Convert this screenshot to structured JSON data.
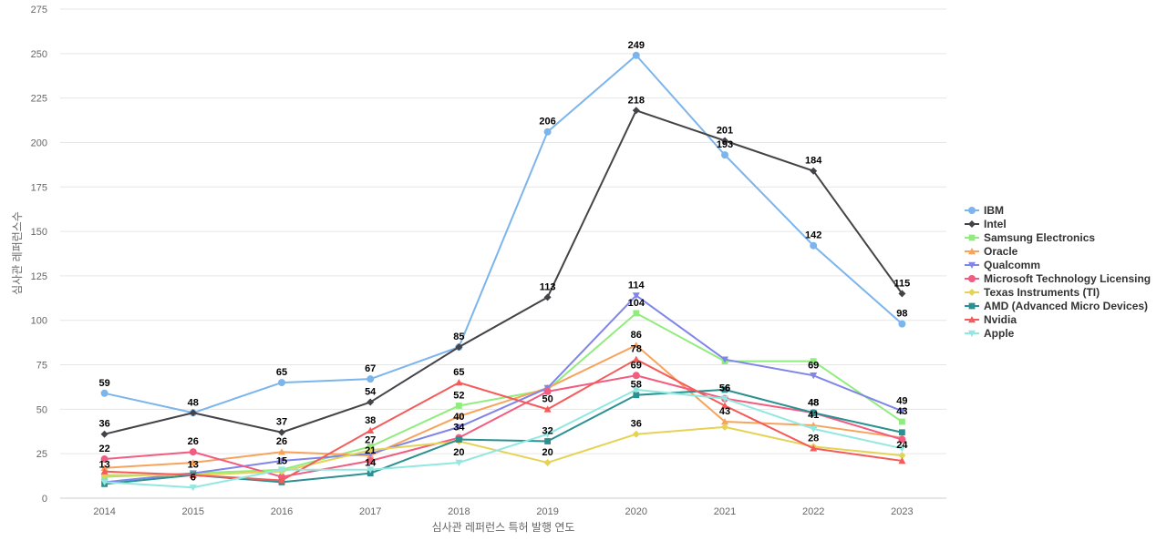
{
  "chart_data": {
    "type": "line",
    "title": "",
    "xlabel": "심사관 레퍼런스 특허 발행 연도",
    "ylabel": "심사관 레퍼런스수",
    "categories": [
      "2014",
      "2015",
      "2016",
      "2017",
      "2018",
      "2019",
      "2020",
      "2021",
      "2022",
      "2023"
    ],
    "yticks": [
      0,
      25,
      50,
      75,
      100,
      125,
      150,
      175,
      200,
      225,
      250,
      275
    ],
    "ylim": [
      0,
      275
    ],
    "grid": true,
    "legend": "right",
    "series": [
      {
        "name": "IBM",
        "color": "#7cb5ec",
        "marker": "circle",
        "values": [
          59,
          48,
          65,
          67,
          85,
          206,
          249,
          193,
          142,
          98
        ],
        "labels": [
          true,
          true,
          true,
          true,
          true,
          true,
          true,
          true,
          true,
          true
        ]
      },
      {
        "name": "Intel",
        "color": "#434348",
        "marker": "diamond",
        "values": [
          36,
          48,
          37,
          54,
          85,
          113,
          218,
          201,
          184,
          115
        ],
        "labels": [
          true,
          false,
          true,
          true,
          false,
          true,
          true,
          true,
          true,
          true
        ]
      },
      {
        "name": "Samsung Electronics",
        "color": "#90ed7d",
        "marker": "square",
        "values": [
          12,
          14,
          16,
          29,
          52,
          61,
          104,
          77,
          77,
          43
        ],
        "labels": [
          false,
          false,
          false,
          false,
          true,
          false,
          true,
          false,
          false,
          true
        ]
      },
      {
        "name": "Oracle",
        "color": "#f7a35c",
        "marker": "triangle",
        "values": [
          17,
          20,
          26,
          24,
          46,
          62,
          86,
          43,
          41,
          34
        ],
        "labels": [
          false,
          false,
          true,
          false,
          false,
          false,
          true,
          true,
          true,
          false
        ]
      },
      {
        "name": "Qualcomm",
        "color": "#8085e9",
        "marker": "triangle-down",
        "values": [
          9,
          14,
          21,
          25,
          40,
          62,
          114,
          78,
          69,
          49
        ],
        "labels": [
          false,
          false,
          false,
          false,
          true,
          false,
          true,
          false,
          true,
          true
        ]
      },
      {
        "name": "Microsoft Technology Licensing",
        "color": "#f15c80",
        "marker": "circle",
        "values": [
          22,
          26,
          12,
          21,
          34,
          60,
          69,
          56,
          48,
          33
        ],
        "labels": [
          true,
          true,
          false,
          true,
          true,
          false,
          true,
          true,
          true,
          false
        ]
      },
      {
        "name": "Texas Instruments (TI)",
        "color": "#e4d354",
        "marker": "diamond",
        "values": [
          13,
          13,
          15,
          27,
          32,
          20,
          36,
          40,
          29,
          24
        ],
        "labels": [
          true,
          true,
          true,
          true,
          false,
          true,
          true,
          false,
          false,
          true
        ]
      },
      {
        "name": "AMD (Advanced Micro Devices)",
        "color": "#2b908f",
        "marker": "square",
        "values": [
          8,
          13,
          9,
          14,
          33,
          32,
          58,
          61,
          48,
          37
        ],
        "labels": [
          false,
          false,
          false,
          true,
          false,
          true,
          true,
          false,
          true,
          false
        ]
      },
      {
        "name": "Nvidia",
        "color": "#f45b5b",
        "marker": "triangle",
        "values": [
          15,
          13,
          10,
          38,
          65,
          50,
          78,
          52,
          28,
          21
        ],
        "labels": [
          false,
          false,
          false,
          true,
          true,
          true,
          true,
          false,
          true,
          false
        ]
      },
      {
        "name": "Apple",
        "color": "#91e8e1",
        "marker": "triangle-down",
        "values": [
          9,
          6,
          16,
          16,
          20,
          36,
          61,
          56,
          39,
          28
        ],
        "labels": [
          false,
          true,
          false,
          false,
          true,
          false,
          false,
          true,
          false,
          false
        ]
      }
    ]
  }
}
